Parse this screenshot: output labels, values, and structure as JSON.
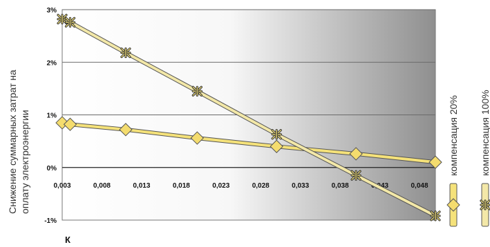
{
  "chart_data": {
    "type": "line",
    "ylabel_line1": "Снижение суммарных затрат на",
    "ylabel_line2": "оплату электроэнергии",
    "xlabel": "К",
    "x_ticks": [
      "0,003",
      "0,008",
      "0,013",
      "0,018",
      "0,023",
      "0,028",
      "0,033",
      "0,038",
      "0,043",
      "0,048"
    ],
    "y_ticks": [
      "3%",
      "2%",
      "1%",
      "0%",
      "-1%"
    ],
    "xlim": [
      0.003,
      0.05
    ],
    "ylim": [
      -1,
      3
    ],
    "grid": "horizontal",
    "legend_placement": "right",
    "series": [
      {
        "name": "компенсация 20%",
        "marker": "diamond",
        "color": "#f5e27a",
        "x": [
          0.003,
          0.004,
          0.011,
          0.02,
          0.03,
          0.04,
          0.05
        ],
        "y": [
          0.85,
          0.82,
          0.72,
          0.56,
          0.4,
          0.26,
          0.1
        ]
      },
      {
        "name": "компенсация 100%",
        "marker": "asterisk",
        "color": "#f3e8a8",
        "x": [
          0.003,
          0.004,
          0.011,
          0.02,
          0.03,
          0.04,
          0.05
        ],
        "y": [
          2.82,
          2.76,
          2.18,
          1.45,
          0.63,
          -0.15,
          -0.92
        ]
      }
    ]
  }
}
